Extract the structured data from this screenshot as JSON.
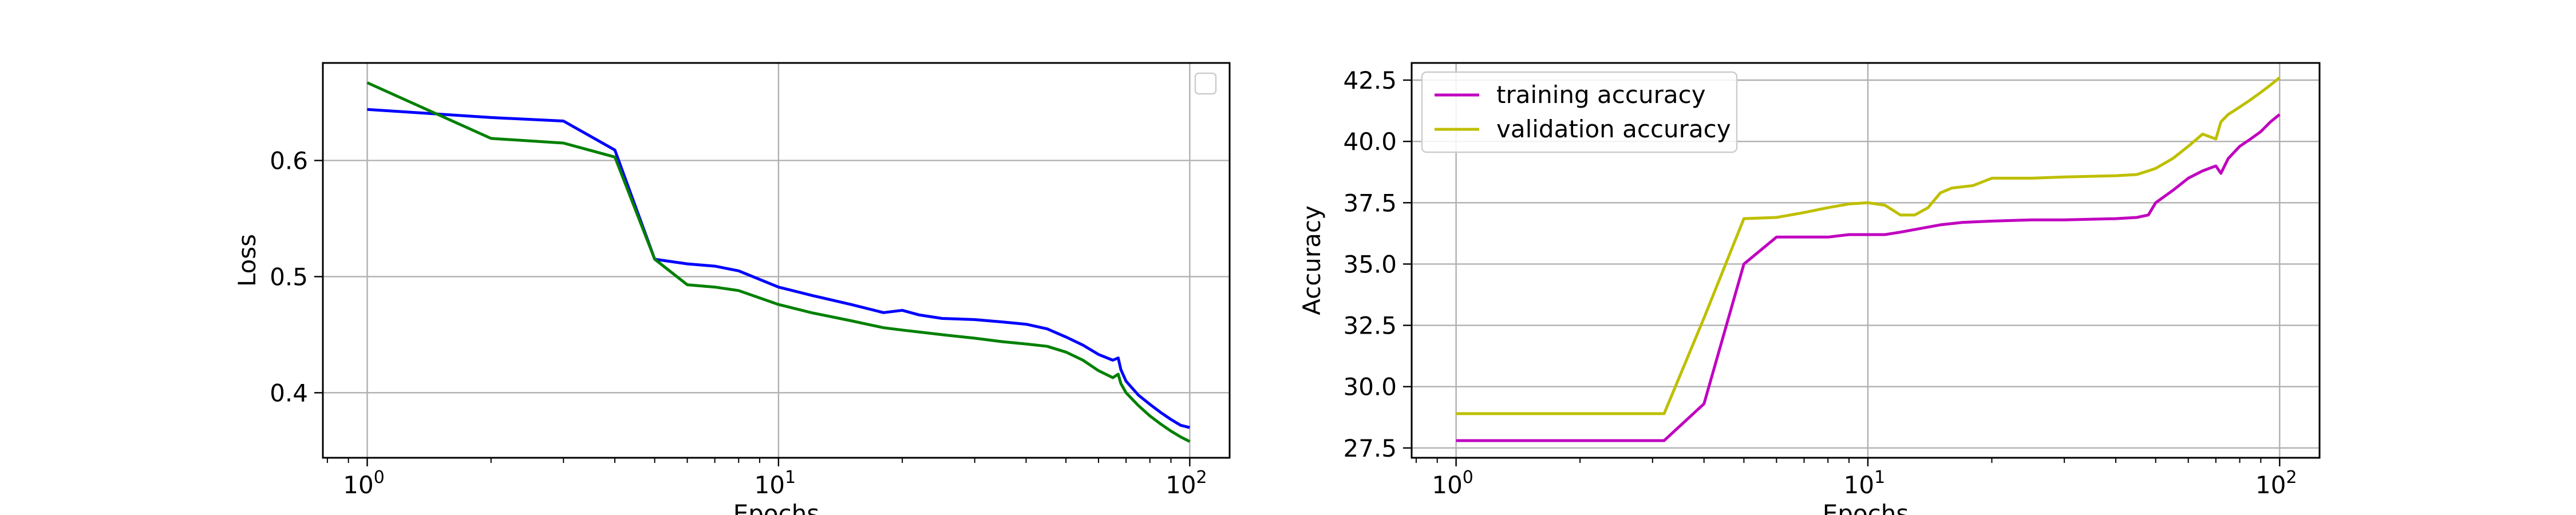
{
  "chart_data": [
    {
      "type": "line",
      "xlabel": "Epochs",
      "ylabel": "Loss",
      "xscale": "log",
      "xlim": [
        0.78,
        125
      ],
      "ylim": [
        0.344,
        0.684
      ],
      "xticks": [
        1,
        10,
        100
      ],
      "xtick_labels": [
        [
          "10",
          "0"
        ],
        [
          "10",
          "1"
        ],
        [
          "10",
          "2"
        ]
      ],
      "yticks": [
        0.4,
        0.5,
        0.6
      ],
      "ytick_labels": [
        "0.4",
        "0.5",
        "0.6"
      ],
      "grid": true,
      "legend": {
        "placement": "top-right",
        "entries": []
      },
      "series": [
        {
          "color": "#0000ff",
          "x": [
            1,
            2,
            3,
            4,
            5,
            6,
            7,
            8,
            10,
            12,
            15,
            18,
            20,
            22,
            25,
            30,
            35,
            40,
            45,
            50,
            55,
            60,
            65,
            67,
            68,
            70,
            75,
            80,
            85,
            90,
            95,
            100
          ],
          "y": [
            0.644,
            0.637,
            0.634,
            0.609,
            0.515,
            0.511,
            0.509,
            0.505,
            0.491,
            0.484,
            0.476,
            0.469,
            0.471,
            0.467,
            0.464,
            0.463,
            0.461,
            0.459,
            0.455,
            0.448,
            0.441,
            0.433,
            0.428,
            0.43,
            0.42,
            0.41,
            0.398,
            0.39,
            0.383,
            0.377,
            0.372,
            0.37
          ]
        },
        {
          "color": "#008000",
          "x": [
            1,
            2,
            3,
            4,
            5,
            6,
            7,
            8,
            10,
            12,
            15,
            18,
            20,
            25,
            30,
            35,
            40,
            45,
            50,
            55,
            60,
            65,
            67,
            68,
            70,
            75,
            80,
            85,
            90,
            95,
            100
          ],
          "y": [
            0.667,
            0.619,
            0.615,
            0.603,
            0.515,
            0.493,
            0.491,
            0.488,
            0.476,
            0.469,
            0.462,
            0.456,
            0.454,
            0.45,
            0.447,
            0.444,
            0.442,
            0.44,
            0.435,
            0.428,
            0.419,
            0.413,
            0.416,
            0.408,
            0.4,
            0.389,
            0.38,
            0.373,
            0.367,
            0.362,
            0.358
          ]
        }
      ]
    },
    {
      "type": "line",
      "xlabel": "Epochs",
      "ylabel": "Accuracy",
      "xscale": "log",
      "xlim": [
        0.78,
        125
      ],
      "ylim": [
        27.1,
        43.2
      ],
      "xticks": [
        1,
        10,
        100
      ],
      "xtick_labels": [
        [
          "10",
          "0"
        ],
        [
          "10",
          "1"
        ],
        [
          "10",
          "2"
        ]
      ],
      "yticks": [
        27.5,
        30.0,
        32.5,
        35.0,
        37.5,
        40.0,
        42.5
      ],
      "ytick_labels": [
        "27.5",
        "30.0",
        "32.5",
        "35.0",
        "37.5",
        "40.0",
        "42.5"
      ],
      "grid": true,
      "legend": {
        "placement": "top-left",
        "entries": [
          "training accuracy",
          "validation accuracy"
        ]
      },
      "series": [
        {
          "name": "training accuracy",
          "color": "#c000c0",
          "x": [
            1,
            2,
            3,
            3.2,
            4,
            5,
            6,
            7,
            8,
            9,
            10,
            11,
            12,
            15,
            17,
            20,
            25,
            30,
            40,
            45,
            48,
            50,
            55,
            60,
            65,
            70,
            72,
            75,
            80,
            85,
            90,
            95,
            100
          ],
          "y": [
            27.8,
            27.8,
            27.8,
            27.8,
            29.3,
            35.0,
            36.1,
            36.1,
            36.1,
            36.2,
            36.2,
            36.2,
            36.3,
            36.6,
            36.7,
            36.75,
            36.8,
            36.8,
            36.85,
            36.9,
            37.0,
            37.5,
            38.0,
            38.5,
            38.8,
            39.0,
            38.7,
            39.3,
            39.8,
            40.1,
            40.4,
            40.8,
            41.1
          ]
        },
        {
          "name": "validation accuracy",
          "color": "#bfbf00",
          "x": [
            1,
            2,
            3,
            3.2,
            4,
            5,
            6,
            7,
            8,
            9,
            10,
            11,
            12,
            13,
            14,
            15,
            16,
            18,
            20,
            25,
            30,
            40,
            45,
            48,
            50,
            55,
            60,
            65,
            70,
            72,
            75,
            80,
            85,
            90,
            95,
            100
          ],
          "y": [
            28.9,
            28.9,
            28.9,
            28.9,
            32.8,
            36.85,
            36.9,
            37.1,
            37.3,
            37.45,
            37.5,
            37.4,
            37.0,
            37.0,
            37.3,
            37.9,
            38.1,
            38.2,
            38.5,
            38.5,
            38.55,
            38.6,
            38.65,
            38.8,
            38.9,
            39.3,
            39.8,
            40.3,
            40.1,
            40.8,
            41.1,
            41.4,
            41.7,
            42.0,
            42.3,
            42.6
          ]
        }
      ]
    }
  ]
}
